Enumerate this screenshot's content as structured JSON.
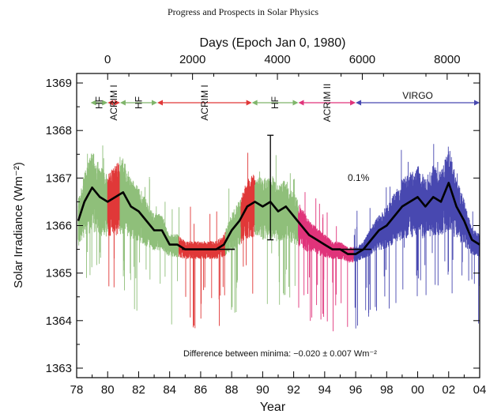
{
  "page_title": "Progress and Prospects in Solar Physics",
  "chart_data": {
    "type": "line",
    "title": "",
    "xlabel": "Year",
    "ylabel": "Solar Irradiance (Wm⁻²)",
    "top_axis_label": "Days (Epoch Jan 0, 1980)",
    "top_ticks": [
      "0",
      "2000",
      "4000",
      "6000",
      "8000"
    ],
    "top_tick_days": [
      0,
      2000,
      4000,
      6000,
      8000
    ],
    "x_tick_labels": [
      "78",
      "80",
      "82",
      "84",
      "86",
      "88",
      "90",
      "92",
      "94",
      "96",
      "98",
      "00",
      "02",
      "04"
    ],
    "x_tick_years": [
      1978,
      1980,
      1982,
      1984,
      1986,
      1988,
      1990,
      1992,
      1994,
      1996,
      1998,
      2000,
      2002,
      2004
    ],
    "xlim": [
      1978,
      2004
    ],
    "y_ticks": [
      1363,
      1364,
      1365,
      1366,
      1367,
      1368,
      1369
    ],
    "y_tick_labels": [
      "1363",
      "1364",
      "1365",
      "1366",
      "1367",
      "1368",
      "1369"
    ],
    "ylim": [
      1362.8,
      1369.2
    ],
    "grid": false,
    "instruments": [
      {
        "name": "HF",
        "start": 1978.9,
        "end": 1980.0,
        "color": "#7fb56a"
      },
      {
        "name": "ACRIM I",
        "start": 1980.0,
        "end": 1980.8,
        "color": "#e03838"
      },
      {
        "name": "HF",
        "start": 1980.8,
        "end": 1983.2,
        "color": "#7fb56a"
      },
      {
        "name": "ACRIM I",
        "start": 1983.2,
        "end": 1989.3,
        "color": "#e03838"
      },
      {
        "name": "HF",
        "start": 1989.3,
        "end": 1992.3,
        "color": "#7fb56a"
      },
      {
        "name": "ACRIM II",
        "start": 1992.3,
        "end": 1996.0,
        "color": "#e0337a"
      },
      {
        "name": "VIRGO",
        "start": 1996.0,
        "end": 2004.0,
        "color": "#4848b0"
      }
    ],
    "data_segments": [
      {
        "start": 1978.1,
        "end": 1980.0,
        "color": "#8fbf7a"
      },
      {
        "start": 1980.0,
        "end": 1980.8,
        "color": "#e03838"
      },
      {
        "start": 1980.8,
        "end": 1984.6,
        "color": "#8fbf7a"
      },
      {
        "start": 1984.6,
        "end": 1987.6,
        "color": "#e03838"
      },
      {
        "start": 1987.6,
        "end": 1988.6,
        "color": "#8fbf7a"
      },
      {
        "start": 1988.6,
        "end": 1989.5,
        "color": "#e03838"
      },
      {
        "start": 1989.5,
        "end": 1992.3,
        "color": "#8fbf7a"
      },
      {
        "start": 1992.3,
        "end": 1995.9,
        "color": "#e0337a"
      },
      {
        "start": 1995.9,
        "end": 2004.0,
        "color": "#4848b0"
      }
    ],
    "composite_mean": {
      "name": "",
      "x": [
        1978.1,
        1978.5,
        1979.0,
        1979.5,
        1980.0,
        1980.5,
        1981.0,
        1981.5,
        1982.0,
        1982.5,
        1983.0,
        1983.5,
        1984.0,
        1984.5,
        1985.0,
        1985.5,
        1986.0,
        1986.5,
        1987.0,
        1987.5,
        1988.0,
        1988.5,
        1989.0,
        1989.5,
        1990.0,
        1990.5,
        1991.0,
        1991.5,
        1992.0,
        1992.5,
        1993.0,
        1993.5,
        1994.0,
        1994.5,
        1995.0,
        1995.5,
        1996.0,
        1996.5,
        1997.0,
        1997.5,
        1998.0,
        1998.5,
        1999.0,
        1999.5,
        2000.0,
        2000.5,
        2001.0,
        2001.5,
        2002.0,
        2002.5,
        2003.0,
        2003.5,
        2004.0
      ],
      "y": [
        1366.1,
        1366.5,
        1366.8,
        1366.6,
        1366.5,
        1366.6,
        1366.7,
        1366.4,
        1366.3,
        1366.1,
        1365.9,
        1365.9,
        1365.6,
        1365.6,
        1365.5,
        1365.5,
        1365.5,
        1365.5,
        1365.5,
        1365.6,
        1365.9,
        1366.1,
        1366.4,
        1366.5,
        1366.4,
        1366.5,
        1366.3,
        1366.4,
        1366.2,
        1366.0,
        1365.8,
        1365.7,
        1365.6,
        1365.5,
        1365.5,
        1365.4,
        1365.4,
        1365.5,
        1365.7,
        1365.9,
        1366.0,
        1366.2,
        1366.4,
        1366.5,
        1366.6,
        1366.4,
        1366.6,
        1366.5,
        1366.9,
        1366.4,
        1366.1,
        1365.7,
        1365.6
      ]
    },
    "minima_levels": [
      {
        "start": 1984.8,
        "end": 1988.2,
        "value": 1365.5
      },
      {
        "start": 1994.5,
        "end": 1997.0,
        "value": 1365.5
      }
    ],
    "scale_bar": {
      "label": "0.1%",
      "year": 1990.5,
      "from": 1365.7,
      "to": 1367.9
    },
    "annotation": "Difference between minima: −0.020 ± 0.007 Wm⁻²"
  }
}
